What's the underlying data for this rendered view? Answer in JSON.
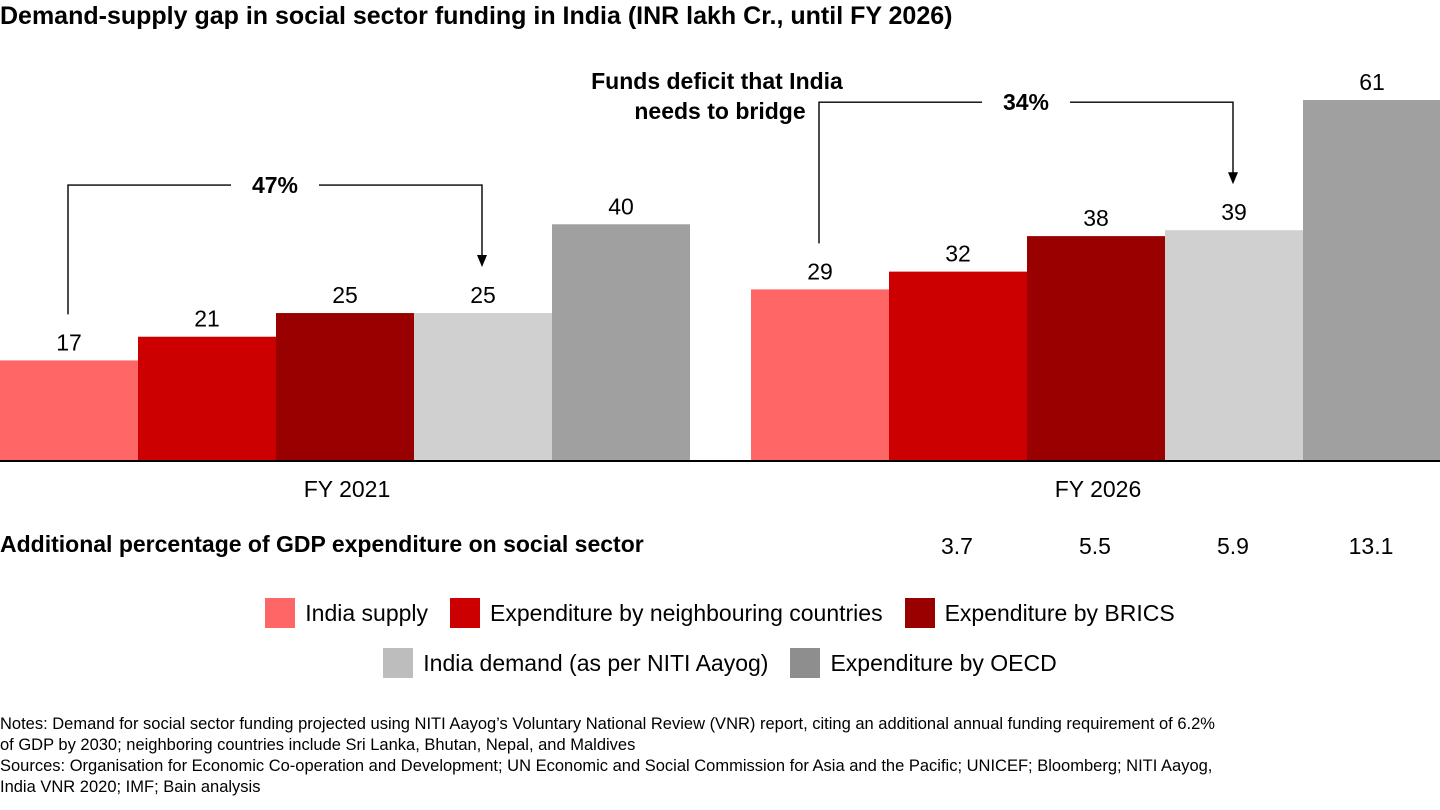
{
  "title": "Demand-supply gap in social sector funding in India (INR lakh Cr., until FY 2026)",
  "chart_data": {
    "type": "bar",
    "title": "Demand-supply gap in social sector funding in India (INR lakh Cr., until FY 2026)",
    "categories": [
      "FY 2021",
      "FY 2026"
    ],
    "series": [
      {
        "name": "India supply",
        "color": "#ff6666",
        "values": [
          17,
          29
        ]
      },
      {
        "name": "Expenditure by neighbouring countries",
        "color": "#cc0000",
        "values": [
          21,
          32
        ]
      },
      {
        "name": "Expenditure by BRICS",
        "color": "#990000",
        "values": [
          25,
          38
        ]
      },
      {
        "name": "India demand (as per NITI Aayog)",
        "color": "#d0d0d0",
        "values": [
          25,
          39
        ]
      },
      {
        "name": "Expenditure by OECD",
        "color": "#a0a0a0",
        "values": [
          40,
          61
        ]
      }
    ],
    "ylim": [
      0,
      61
    ],
    "annotation": "Funds deficit that India needs to bridge",
    "gaps": [
      {
        "category": "FY 2021",
        "label": "47%",
        "from": "India supply",
        "to": "India demand (as per NITI Aayog)"
      },
      {
        "category": "FY 2026",
        "label": "34%",
        "from": "India supply",
        "to": "India demand (as per NITI Aayog)"
      }
    ],
    "legend_position": "bottom"
  },
  "gdp_row": {
    "heading": "Additional percentage of GDP expenditure on social sector",
    "values": [
      "3.7",
      "5.5",
      "5.9",
      "13.1"
    ]
  },
  "legend": {
    "row1": [
      {
        "label": "India supply",
        "color": "#ff6666"
      },
      {
        "label": "Expenditure by neighbouring countries",
        "color": "#cc0000"
      },
      {
        "label": "Expenditure by BRICS",
        "color": "#990000"
      }
    ],
    "row2": [
      {
        "label": "India demand (as per NITI Aayog)",
        "color": "#bdbdbd"
      },
      {
        "label": "Expenditure by OECD",
        "color": "#8e8e8e"
      }
    ]
  },
  "notes": {
    "line1": "Notes: Demand for social sector funding projected using NITI Aayog’s Voluntary National Review (VNR) report, citing an additional annual funding requirement of 6.2%",
    "line2": "of GDP by 2030; neighboring countries include Sri Lanka, Bhutan, Nepal, and Maldives",
    "line3": "Sources: Organisation for Economic Co-operation and Development; UN Economic and Social Commission for Asia and the Pacific; UNICEF; Bloomberg; NITI Aayog,",
    "line4": "India VNR 2020; IMF; Bain analysis"
  }
}
